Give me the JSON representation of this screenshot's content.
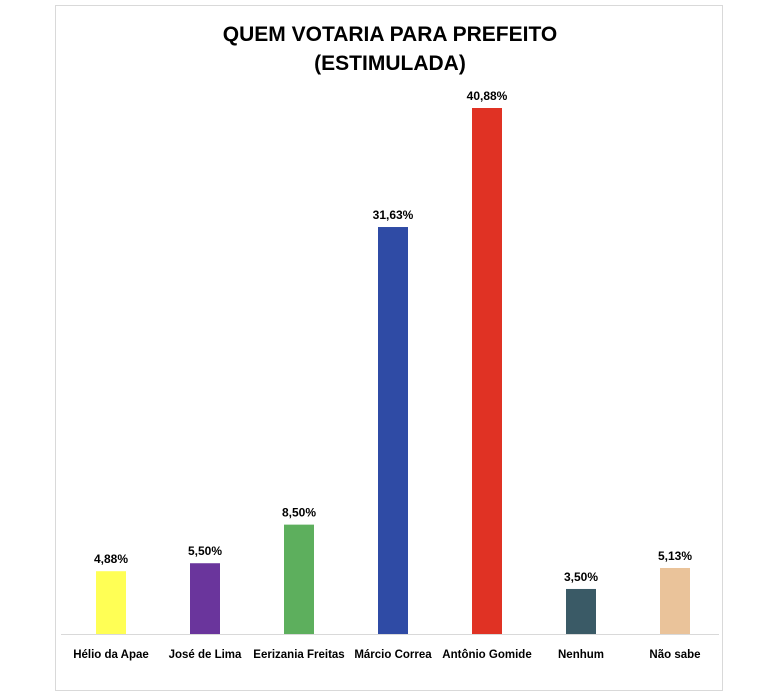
{
  "chart_data": {
    "type": "bar",
    "title": "QUEM VOTARIA PARA PREFEITO",
    "subtitle": "(ESTIMULADA)",
    "categories": [
      "Hélio da Apae",
      "José de Lima",
      "Eerizania Freitas",
      "Márcio Correa",
      "Antônio Gomide",
      "Nenhum",
      "Não sabe"
    ],
    "values": [
      4.88,
      5.5,
      8.5,
      31.63,
      40.88,
      3.5,
      5.13
    ],
    "value_labels": [
      "4,88%",
      "5,50%",
      "8,50%",
      "31,63%",
      "40,88%",
      "3,50%",
      "5,13%"
    ],
    "colors": [
      "#ffff55",
      "#6a359c",
      "#5daf5d",
      "#2f4ba5",
      "#e03224",
      "#3a5a66",
      "#eac39a"
    ],
    "xlabel": "",
    "ylabel": "",
    "ylim": [
      0,
      40.88
    ],
    "grid": false,
    "legend": "none"
  }
}
